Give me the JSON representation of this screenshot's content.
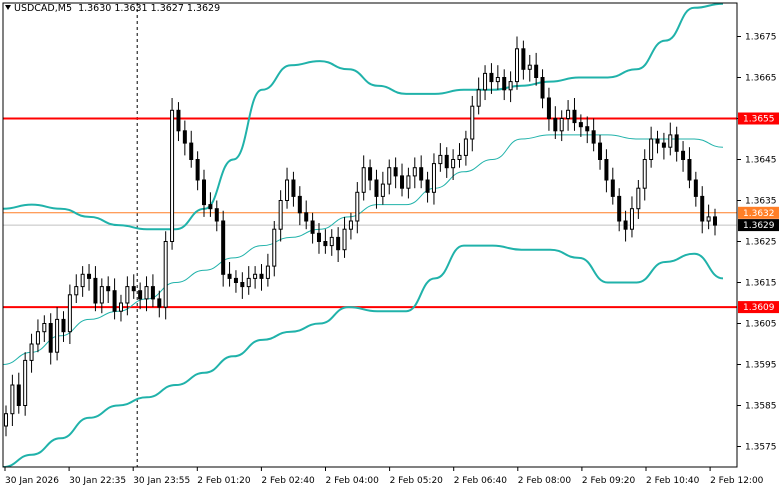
{
  "header": {
    "symbol": "USDCAD,M5",
    "open": "1.3630",
    "high": "1.3631",
    "low": "1.3627",
    "close": "1.3629"
  },
  "colors": {
    "candle": "#000000",
    "bollinger": "#20b2aa",
    "level_line": "#ff0000",
    "level_label_bg": "#ff0000",
    "current_line": "#ff7f27",
    "bid_line": "#c0c0c0",
    "price_label_bg": "#000000"
  },
  "chart_data": {
    "type": "candlestick",
    "symbol": "USDCAD",
    "timeframe": "M5",
    "ylim": [
      1.357,
      1.368
    ],
    "y_ticks": [
      "1.3675",
      "1.3665",
      "1.3655",
      "1.3645",
      "1.3635",
      "1.3625",
      "1.3615",
      "1.3605",
      "1.3595",
      "1.3585",
      "1.3575"
    ],
    "x_ticks": [
      "30 Jan 2026",
      "30 Jan 22:35",
      "30 Jan 23:55",
      "2 Feb 01:20",
      "2 Feb 02:40",
      "2 Feb 04:00",
      "2 Feb 05:20",
      "2 Feb 06:40",
      "2 Feb 08:00",
      "2 Feb 09:20",
      "2 Feb 10:40",
      "2 Feb 12:00"
    ],
    "horizontal_levels": [
      {
        "price": "1.3655",
        "kind": "level"
      },
      {
        "price": "1.3609",
        "kind": "level"
      },
      {
        "price": "1.3632",
        "kind": "current"
      },
      {
        "price": "1.3629",
        "kind": "bid"
      }
    ],
    "period_separator_x_tick": 2,
    "closes": [
      1.3583,
      1.359,
      1.3585,
      1.3596,
      1.36,
      1.3603,
      1.3605,
      1.3598,
      1.3606,
      1.3603,
      1.3612,
      1.3614,
      1.3617,
      1.3616,
      1.361,
      1.3614,
      1.3613,
      1.3608,
      1.361,
      1.3614,
      1.3613,
      1.3611,
      1.3614,
      1.3611,
      1.3609,
      1.3625,
      1.3657,
      1.3652,
      1.3649,
      1.3645,
      1.364,
      1.3634,
      1.3633,
      1.363,
      1.3617,
      1.3616,
      1.3615,
      1.3614,
      1.3616,
      1.3617,
      1.3616,
      1.3619,
      1.3628,
      1.3635,
      1.364,
      1.3636,
      1.3632,
      1.363,
      1.3627,
      1.3625,
      1.3624,
      1.3626,
      1.3623,
      1.3628,
      1.363,
      1.3637,
      1.3643,
      1.364,
      1.3636,
      1.3639,
      1.3643,
      1.3641,
      1.3638,
      1.3641,
      1.3643,
      1.364,
      1.3637,
      1.3644,
      1.3646,
      1.3643,
      1.3645,
      1.3646,
      1.365,
      1.3658,
      1.3662,
      1.3666,
      1.3664,
      1.3665,
      1.3662,
      1.3664,
      1.3672,
      1.3667,
      1.3668,
      1.3665,
      1.366,
      1.3655,
      1.3652,
      1.3655,
      1.3657,
      1.3654,
      1.3653,
      1.3652,
      1.3649,
      1.3645,
      1.364,
      1.3636,
      1.363,
      1.3628,
      1.3633,
      1.3638,
      1.3645,
      1.365,
      1.3649,
      1.3648,
      1.3651,
      1.3647,
      1.3645,
      1.364,
      1.3636,
      1.363,
      1.3631,
      1.3629
    ],
    "bollinger_upper": [
      1.3633,
      1.3634,
      1.3633,
      1.3631,
      1.3629,
      1.3628,
      1.3628,
      1.3633,
      1.3645,
      1.3662,
      1.3668,
      1.3669,
      1.3667,
      1.3663,
      1.3661,
      1.3661,
      1.3662,
      1.3662,
      1.3663,
      1.3664,
      1.3665,
      1.3665,
      1.3667,
      1.3674,
      1.3682,
      1.3683
    ],
    "bollinger_lower": [
      1.357,
      1.3573,
      1.3577,
      1.3582,
      1.3585,
      1.3587,
      1.359,
      1.3593,
      1.3597,
      1.3601,
      1.3603,
      1.3605,
      1.3609,
      1.3608,
      1.3608,
      1.3616,
      1.3624,
      1.3624,
      1.3623,
      1.3623,
      1.3621,
      1.3615,
      1.3615,
      1.362,
      1.3622,
      1.3616
    ],
    "bollinger_middle": [
      1.3595,
      1.3598,
      1.3602,
      1.3606,
      1.3608,
      1.3611,
      1.3615,
      1.3618,
      1.3621,
      1.3624,
      1.3626,
      1.3628,
      1.3631,
      1.3634,
      1.3634,
      1.3638,
      1.3642,
      1.3645,
      1.365,
      1.3651,
      1.3651,
      1.3651,
      1.365,
      1.365,
      1.365,
      1.3648
    ]
  }
}
